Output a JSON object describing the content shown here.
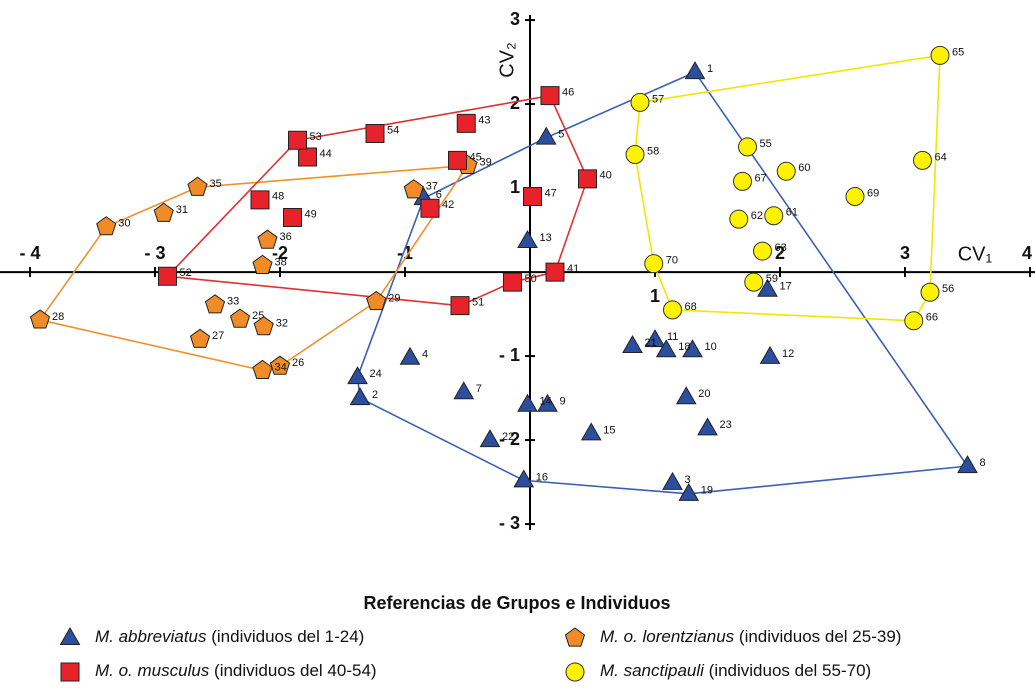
{
  "chart_data": {
    "type": "scatter",
    "x_label": "CV₁",
    "y_label": "CV₂",
    "xlim": [
      -4.24,
      4.04
    ],
    "ylim": [
      -3.13,
      3.12
    ],
    "xticks": [
      {
        "value": -4,
        "label": "- 4"
      },
      {
        "value": -3,
        "label": "- 3"
      },
      {
        "value": -2,
        "label": "-2"
      },
      {
        "value": -1,
        "label": "-1"
      },
      1,
      2,
      3,
      4
    ],
    "yticks": [
      3,
      2,
      1,
      {
        "value": -1,
        "label": "- 1"
      },
      {
        "value": -2,
        "label": "- 2"
      },
      {
        "value": -3,
        "label": "- 3"
      }
    ],
    "grid": false,
    "legend_title": "Referencias de Grupos e Individuos",
    "legend_position": "bottom",
    "series": [
      {
        "name": "M. abbreviatus",
        "note": "(individuos del 1-24)",
        "marker": "triangle",
        "color": "#2b4f9e",
        "hull_color": "#3b5fb5",
        "labels": [
          1,
          2,
          3,
          4,
          5,
          6,
          7,
          8,
          9,
          10,
          11,
          12,
          13,
          14,
          15,
          16,
          17,
          18,
          19,
          20,
          21,
          22,
          23,
          24
        ],
        "x": [
          1.32,
          -1.36,
          1.14,
          -0.96,
          0.13,
          -0.85,
          -0.53,
          3.5,
          0.14,
          1.3,
          1.0,
          1.92,
          -0.02,
          -0.02,
          0.49,
          -0.05,
          1.9,
          1.09,
          1.27,
          1.25,
          0.82,
          -0.32,
          1.42,
          -1.38
        ],
        "y": [
          2.38,
          -1.5,
          -2.51,
          -1.02,
          1.6,
          0.88,
          -1.43,
          -2.31,
          -1.58,
          -0.93,
          -0.81,
          -1.01,
          0.37,
          -1.58,
          -1.92,
          -2.48,
          -0.21,
          -0.93,
          -2.64,
          -1.49,
          -0.88,
          -2.0,
          -1.86,
          -1.25
        ],
        "hull": [
          1,
          8,
          19,
          16,
          2,
          24,
          6,
          5,
          1
        ]
      },
      {
        "name": "M. o. lorentzianus",
        "note": "(individuos del 25-39)",
        "marker": "pentagon",
        "color": "#f08c28",
        "hull_color": "#f0902a",
        "labels": [
          25,
          26,
          27,
          28,
          29,
          30,
          31,
          32,
          33,
          34,
          35,
          36,
          37,
          38,
          39
        ],
        "x": [
          -2.32,
          -2.0,
          -2.64,
          -3.92,
          -1.23,
          -3.39,
          -2.93,
          -2.13,
          -2.52,
          -2.14,
          -2.66,
          -2.1,
          -0.93,
          -2.14,
          -0.5
        ],
        "y": [
          -0.56,
          -1.12,
          -0.8,
          -0.57,
          -0.35,
          0.54,
          0.7,
          -0.65,
          -0.39,
          -1.17,
          1.01,
          0.38,
          0.98,
          0.08,
          1.27
        ],
        "hull": [
          28,
          30,
          35,
          39,
          29,
          26,
          34,
          28
        ]
      },
      {
        "name": "M. o. musculus",
        "note": "(individuos del 40-54)",
        "marker": "square",
        "color": "#e8222a",
        "hull_color": "#e03030",
        "labels": [
          40,
          41,
          42,
          43,
          44,
          45,
          46,
          47,
          48,
          49,
          50,
          51,
          52,
          53,
          54
        ],
        "x": [
          0.46,
          0.2,
          -0.8,
          -0.51,
          -1.78,
          -0.58,
          0.16,
          0.02,
          -2.16,
          -1.9,
          -0.14,
          -0.56,
          -2.9,
          -1.86,
          -1.24
        ],
        "y": [
          1.11,
          0.0,
          0.76,
          1.77,
          1.37,
          1.33,
          2.1,
          0.9,
          0.86,
          0.65,
          -0.12,
          -0.4,
          -0.05,
          1.57,
          1.65
        ],
        "hull": [
          52,
          53,
          46,
          40,
          41,
          50,
          51,
          52
        ]
      },
      {
        "name": "M. sanctipauli",
        "note": "(individuos del 55-70)",
        "marker": "circle",
        "color": "#fff200",
        "hull_color": "#f2e600",
        "labels": [
          55,
          56,
          57,
          58,
          59,
          60,
          61,
          62,
          63,
          64,
          65,
          66,
          67,
          68,
          69,
          70
        ],
        "x": [
          1.74,
          3.2,
          0.88,
          0.84,
          1.79,
          2.05,
          1.95,
          1.67,
          1.86,
          3.14,
          3.28,
          3.07,
          1.7,
          1.14,
          2.6,
          0.99
        ],
        "y": [
          1.49,
          -0.24,
          2.02,
          1.4,
          -0.12,
          1.2,
          0.67,
          0.63,
          0.25,
          1.33,
          2.58,
          -0.58,
          1.08,
          -0.45,
          0.9,
          0.1
        ],
        "hull": [
          57,
          65,
          56,
          66,
          68,
          70,
          58,
          57
        ]
      }
    ]
  }
}
